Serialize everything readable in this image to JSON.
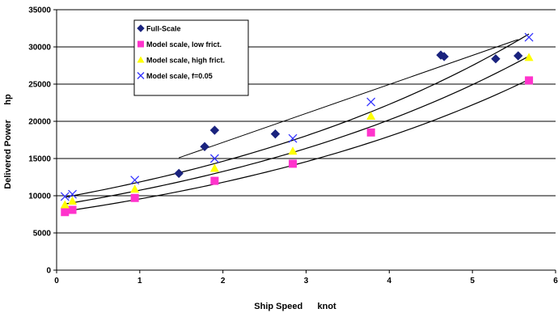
{
  "chart_data": {
    "type": "scatter",
    "title": "",
    "xlabel": "Ship Speed      knot",
    "ylabel": "Delivered Power      hp",
    "xlim": [
      0,
      6
    ],
    "ylim": [
      0,
      35000
    ],
    "x_ticks": [
      0,
      1,
      2,
      3,
      4,
      5,
      6
    ],
    "y_ticks": [
      0,
      5000,
      10000,
      15000,
      20000,
      25000,
      30000,
      35000
    ],
    "grid": "horizontal",
    "legend_position": "upper-left",
    "series": [
      {
        "name": "Full-Scale",
        "marker": "diamond",
        "color": "#1a237e",
        "points": [
          [
            1.47,
            13000
          ],
          [
            1.78,
            16600
          ],
          [
            1.9,
            18800
          ],
          [
            2.63,
            18300
          ],
          [
            4.62,
            28900
          ],
          [
            4.66,
            28700
          ],
          [
            5.28,
            28400
          ],
          [
            5.55,
            28800
          ]
        ]
      },
      {
        "name": "Model scale, low frict.",
        "marker": "square",
        "color": "#ff33cc",
        "points": [
          [
            0.1,
            7800
          ],
          [
            0.19,
            8100
          ],
          [
            0.94,
            9700
          ],
          [
            1.9,
            12000
          ],
          [
            2.84,
            14300
          ],
          [
            3.78,
            18500
          ],
          [
            5.68,
            25500
          ]
        ]
      },
      {
        "name": "Model scale, high frict.",
        "marker": "triangle",
        "color": "#ffff00",
        "points": [
          [
            0.1,
            8800
          ],
          [
            0.19,
            9300
          ],
          [
            0.94,
            10900
          ],
          [
            1.9,
            13700
          ],
          [
            2.84,
            16000
          ],
          [
            3.78,
            20700
          ],
          [
            5.68,
            28600
          ]
        ]
      },
      {
        "name": "Model scale, f=0.05",
        "marker": "x",
        "color": "#3333ff",
        "points": [
          [
            0.1,
            9900
          ],
          [
            0.19,
            10200
          ],
          [
            0.94,
            12100
          ],
          [
            1.9,
            15000
          ],
          [
            2.84,
            17700
          ],
          [
            3.78,
            22600
          ],
          [
            5.68,
            31300
          ]
        ]
      }
    ],
    "trendlines": [
      {
        "fit": "linear",
        "from": [
          1.47,
          15100
        ],
        "to": [
          5.55,
          31000
        ]
      },
      {
        "fit": "exponential",
        "a": 7750,
        "b": 0.2105,
        "x_range": [
          0.1,
          5.68
        ]
      },
      {
        "fit": "exponential",
        "a": 8700,
        "b": 0.2105,
        "x_range": [
          0.1,
          5.68
        ]
      },
      {
        "fit": "exponential",
        "a": 9600,
        "b": 0.2105,
        "x_range": [
          0.1,
          5.68
        ]
      }
    ]
  }
}
